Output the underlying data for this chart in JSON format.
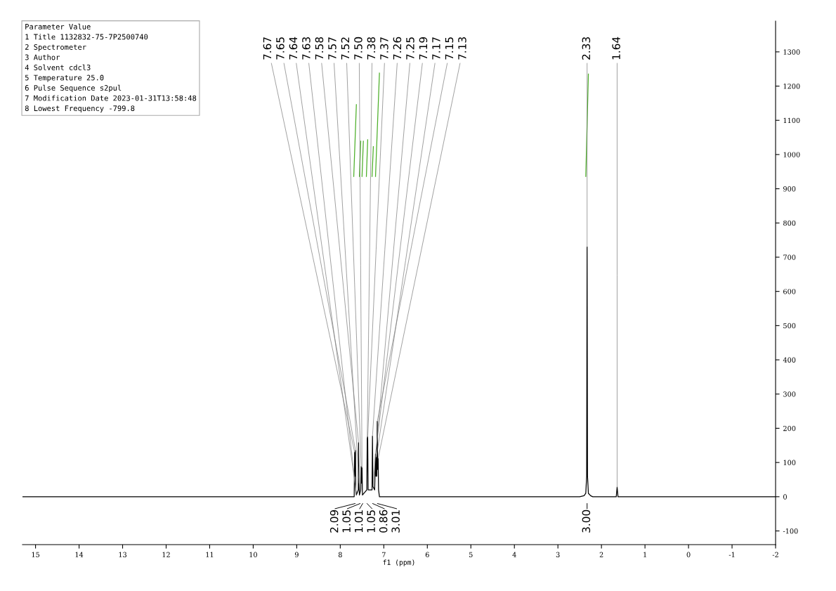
{
  "chart_data": {
    "type": "line",
    "xlabel": "f1 (ppm)",
    "xlim": [
      15.3,
      -2
    ],
    "ylim": [
      -140,
      1390
    ],
    "xticks": [
      15,
      14,
      13,
      12,
      11,
      10,
      9,
      8,
      7,
      6,
      5,
      4,
      3,
      2,
      1,
      0,
      -1,
      -2
    ],
    "yticks": [
      -100,
      0,
      100,
      200,
      300,
      400,
      500,
      600,
      700,
      800,
      900,
      1000,
      1100,
      1200,
      1300
    ],
    "grid": false,
    "legend": false,
    "marker": "none",
    "line_style": "solid",
    "series": [
      {
        "color": "#000000",
        "x": [
          15.3,
          7.75,
          7.68,
          7.67,
          7.66,
          7.65,
          7.645,
          7.63,
          7.585,
          7.58,
          7.57,
          7.56,
          7.53,
          7.52,
          7.515,
          7.5,
          7.49,
          7.39,
          7.38,
          7.37,
          7.36,
          7.27,
          7.26,
          7.25,
          7.21,
          7.19,
          7.18,
          7.17,
          7.16,
          7.15,
          7.14,
          7.13,
          7.12,
          7.1,
          2.5,
          2.4,
          2.36,
          2.34,
          2.33,
          2.32,
          2.3,
          2.25,
          2.2,
          1.66,
          1.64,
          1.62,
          -2
        ],
        "values": [
          0,
          0,
          0,
          130,
          60,
          135,
          20,
          5,
          20,
          158,
          40,
          5,
          20,
          88,
          40,
          85,
          5,
          20,
          172,
          175,
          20,
          20,
          177,
          30,
          20,
          125,
          60,
          115,
          60,
          220,
          80,
          112,
          20,
          0,
          0,
          3,
          10,
          60,
          730,
          60,
          10,
          3,
          0,
          0,
          28,
          0,
          0
        ]
      },
      {
        "color": "#4caf28",
        "x": [
          7.69,
          7.63,
          7.6,
          7.56,
          7.53,
          7.515,
          7.5,
          7.47,
          7.43,
          7.4,
          7.37,
          7.3,
          7.27,
          7.24,
          7.22,
          7.19,
          7.1,
          5,
          2.36,
          2.3
        ],
        "values": [
          936,
          1146,
          null,
          936,
          1039,
          null,
          936,
          1039,
          null,
          936,
          1043,
          null,
          936,
          1023,
          null,
          936,
          1238,
          null,
          936,
          1235
        ]
      }
    ],
    "annotations": [
      "Parameter Value",
      "1 Title 1132832-75-7P2500740",
      "2 Spectrometer",
      "3 Author",
      "4 Solvent cdcl3",
      "5 Temperature 25.0",
      "6 Pulse Sequence s2pul",
      "7 Modification Date 2023-01-31T13:58:48",
      "8 Lowest Frequency -799.8",
      {
        "text": "7.67",
        "x": 7.67,
        "y": 130
      },
      {
        "text": "7.65",
        "x": 7.65,
        "y": 135
      },
      {
        "text": "7.64",
        "x": 7.64,
        "y": 20
      },
      {
        "text": "7.63",
        "x": 7.63,
        "y": 5
      },
      {
        "text": "7.58",
        "x": 7.58,
        "y": 158
      },
      {
        "text": "7.57",
        "x": 7.57,
        "y": 40
      },
      {
        "text": "7.52",
        "x": 7.52,
        "y": 88
      },
      {
        "text": "7.50",
        "x": 7.5,
        "y": 85
      },
      {
        "text": "7.38",
        "x": 7.38,
        "y": 172
      },
      {
        "text": "7.37",
        "x": 7.37,
        "y": 175
      },
      {
        "text": "7.26",
        "x": 7.26,
        "y": 177
      },
      {
        "text": "7.25",
        "x": 7.25,
        "y": 30
      },
      {
        "text": "7.19",
        "x": 7.19,
        "y": 125
      },
      {
        "text": "7.17",
        "x": 7.17,
        "y": 115
      },
      {
        "text": "7.15",
        "x": 7.15,
        "y": 220
      },
      {
        "text": "7.13",
        "x": 7.13,
        "y": 112
      },
      {
        "text": "2.33",
        "x": 2.33,
        "y": 730
      },
      {
        "text": "1.64",
        "x": 1.64,
        "y": 28
      },
      "2.09",
      "1.05",
      "1.01",
      "1.05",
      "0.86",
      "3.01",
      "3.00"
    ]
  }
}
